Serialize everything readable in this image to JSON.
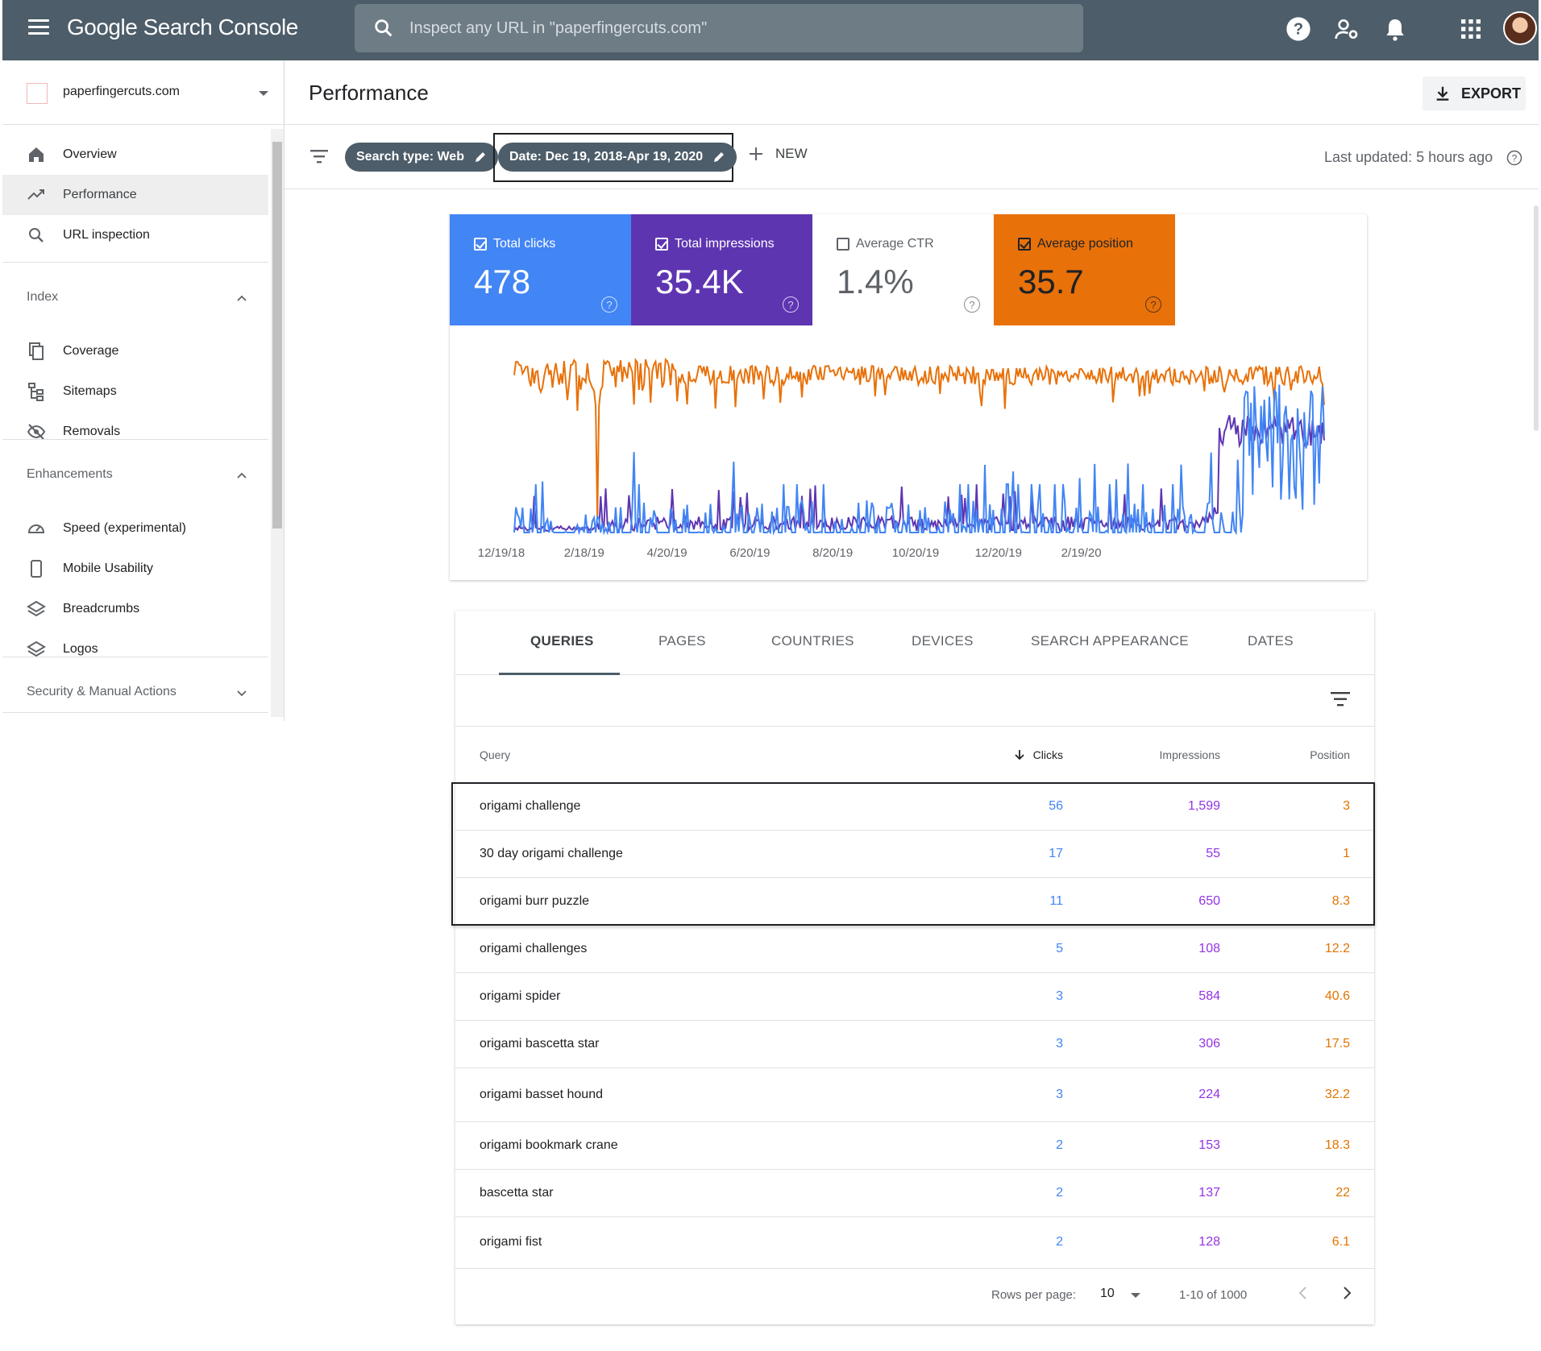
{
  "app": {
    "title": "Google Search Console",
    "search_placeholder": "Inspect any URL in \"paperfingercuts.com\""
  },
  "property": {
    "name": "paperfingercuts.com"
  },
  "sidebar": {
    "top_items": [
      {
        "label": "Overview",
        "icon": "home-icon"
      },
      {
        "label": "Performance",
        "icon": "trending-up-icon",
        "active": true
      },
      {
        "label": "URL inspection",
        "icon": "search-icon"
      }
    ],
    "index": {
      "label": "Index",
      "items": [
        {
          "label": "Coverage",
          "icon": "file-copy-icon"
        },
        {
          "label": "Sitemaps",
          "icon": "sitemap-icon"
        },
        {
          "label": "Removals",
          "icon": "eye-off-icon"
        }
      ]
    },
    "enhancements": {
      "label": "Enhancements",
      "items": [
        {
          "label": "Speed (experimental)",
          "icon": "speedometer-icon"
        },
        {
          "label": "Mobile Usability",
          "icon": "phone-icon"
        },
        {
          "label": "Breadcrumbs",
          "icon": "layers-icon"
        },
        {
          "label": "Logos",
          "icon": "layers-icon"
        }
      ]
    },
    "security": {
      "label": "Security & Manual Actions"
    }
  },
  "header": {
    "title": "Performance",
    "export_label": "EXPORT"
  },
  "filters": {
    "search_type": "Search type: Web",
    "date": "Date: Dec 19, 2018-Apr 19, 2020",
    "new_label": "NEW",
    "last_updated": "Last updated: 5 hours ago"
  },
  "metrics": {
    "total_clicks": {
      "label": "Total clicks",
      "value": "478",
      "checked": true,
      "color": "#4285f4"
    },
    "total_impressions": {
      "label": "Total impressions",
      "value": "35.4K",
      "checked": true,
      "color": "#5e35b1"
    },
    "average_ctr": {
      "label": "Average CTR",
      "value": "1.4%",
      "checked": false,
      "color": "#ffffff"
    },
    "average_position": {
      "label": "Average position",
      "value": "35.7",
      "checked": true,
      "color": "#e8710a"
    }
  },
  "chart_data": {
    "type": "line",
    "x_tick_labels": [
      "12/19/18",
      "2/18/19",
      "4/20/19",
      "6/20/19",
      "8/20/19",
      "10/20/19",
      "12/20/19",
      "2/19/20"
    ],
    "series": [
      {
        "name": "Total clicks",
        "color": "#4285f4"
      },
      {
        "name": "Total impressions",
        "color": "#5e35b1"
      },
      {
        "name": "Average position",
        "color": "#e8710a"
      }
    ],
    "grid": false
  },
  "table": {
    "tabs": [
      "QUERIES",
      "PAGES",
      "COUNTRIES",
      "DEVICES",
      "SEARCH APPEARANCE",
      "DATES"
    ],
    "headers": {
      "query": "Query",
      "clicks": "Clicks",
      "impressions": "Impressions",
      "position": "Position"
    },
    "rows": [
      {
        "query": "origami challenge",
        "clicks": "56",
        "impressions": "1,599",
        "position": "3"
      },
      {
        "query": "30 day origami challenge",
        "clicks": "17",
        "impressions": "55",
        "position": "1"
      },
      {
        "query": "origami burr puzzle",
        "clicks": "11",
        "impressions": "650",
        "position": "8.3"
      },
      {
        "query": "origami challenges",
        "clicks": "5",
        "impressions": "108",
        "position": "12.2"
      },
      {
        "query": "origami spider",
        "clicks": "3",
        "impressions": "584",
        "position": "40.6"
      },
      {
        "query": "origami bascetta star",
        "clicks": "3",
        "impressions": "306",
        "position": "17.5"
      },
      {
        "query": "origami basset hound",
        "clicks": "3",
        "impressions": "224",
        "position": "32.2"
      },
      {
        "query": "origami bookmark crane",
        "clicks": "2",
        "impressions": "153",
        "position": "18.3"
      },
      {
        "query": "bascetta star",
        "clicks": "2",
        "impressions": "137",
        "position": "22"
      },
      {
        "query": "origami fist",
        "clicks": "2",
        "impressions": "128",
        "position": "6.1"
      }
    ],
    "pagination": {
      "rows_per_page_label": "Rows per page:",
      "rows_per_page": "10",
      "range": "1-10 of 1000"
    }
  }
}
